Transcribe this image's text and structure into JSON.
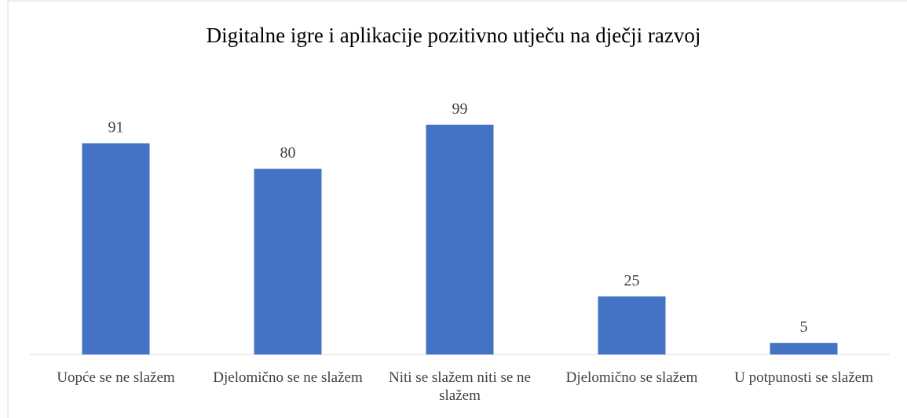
{
  "chart_data": {
    "type": "bar",
    "title": "Digitalne igre i aplikacije pozitivno utječu na dječji razvoj",
    "categories": [
      "Uopće se ne slažem",
      "Djelomično se ne slažem",
      "Niti se slažem niti se ne slažem",
      "Djelomično se slažem",
      "U potpunosti se slažem"
    ],
    "values": [
      91,
      80,
      99,
      25,
      5
    ],
    "color": "#4472c4"
  }
}
